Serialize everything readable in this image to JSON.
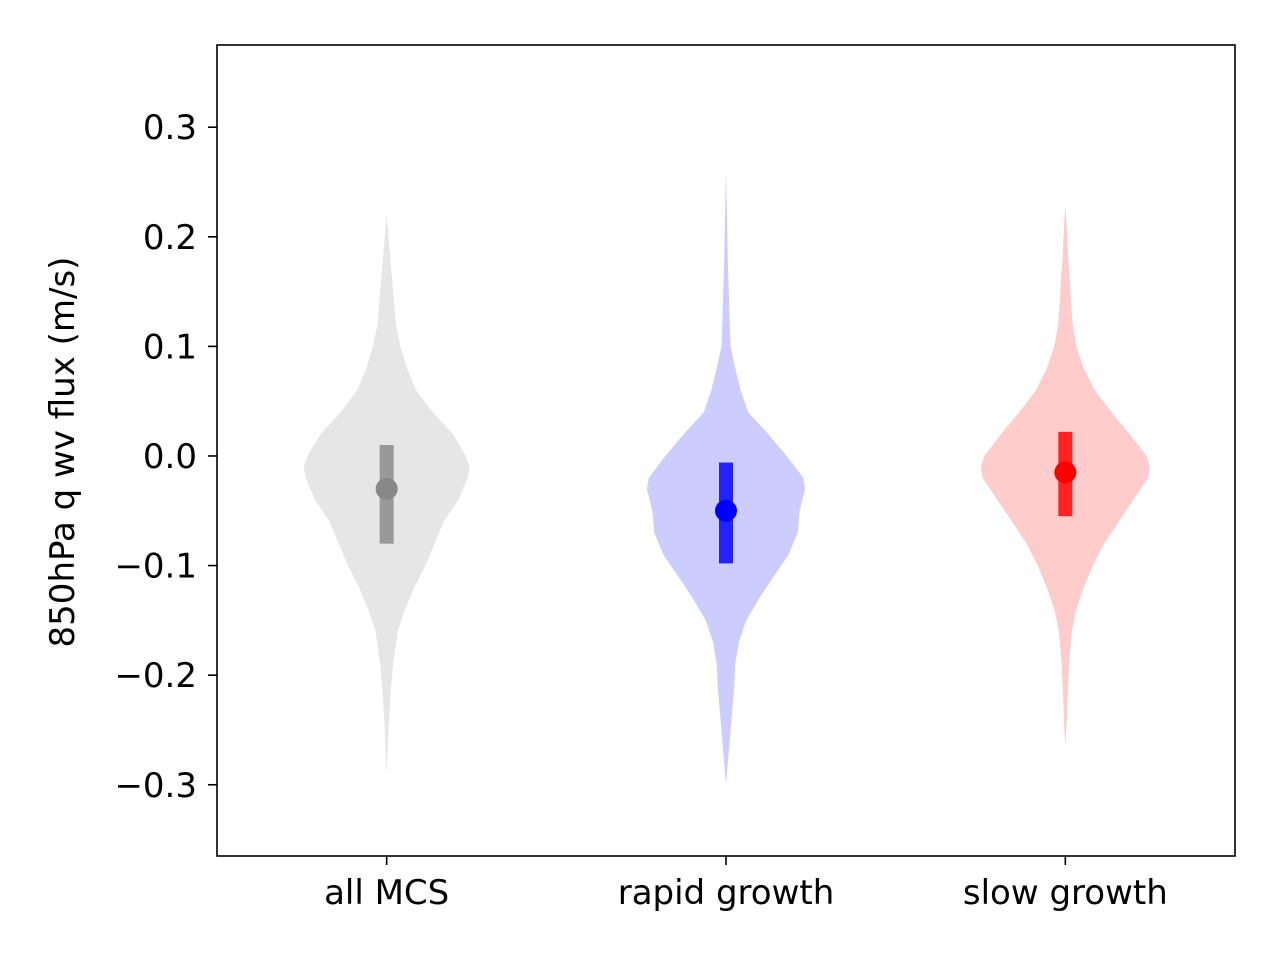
{
  "chart_data": {
    "type": "violin",
    "title": "",
    "xlabel": "",
    "ylabel": "850hPa q wv flux (m/s)",
    "ylim": [
      -0.365,
      0.375
    ],
    "yticks": [
      -0.3,
      -0.2,
      -0.1,
      0.0,
      0.1,
      0.2,
      0.3
    ],
    "ytick_labels": [
      "−0.3",
      "−0.2",
      "−0.1",
      "0.0",
      "0.1",
      "0.2",
      "0.3"
    ],
    "grid": false,
    "categories": [
      "all MCS",
      "rapid growth",
      "slow growth"
    ],
    "series": [
      {
        "category": "all MCS",
        "fill_color": "#e6e6e6",
        "marker_color": "#888888",
        "bar_color": "#999999",
        "median": -0.03,
        "q1": -0.08,
        "q3": 0.01,
        "min": -0.29,
        "max": 0.22,
        "profile": [
          [
            -0.29,
            0
          ],
          [
            -0.27,
            0.01
          ],
          [
            -0.25,
            0.02
          ],
          [
            -0.22,
            0.04
          ],
          [
            -0.19,
            0.07
          ],
          [
            -0.16,
            0.12
          ],
          [
            -0.14,
            0.2
          ],
          [
            -0.12,
            0.3
          ],
          [
            -0.1,
            0.42
          ],
          [
            -0.08,
            0.52
          ],
          [
            -0.06,
            0.62
          ],
          [
            -0.04,
            0.78
          ],
          [
            -0.02,
            0.88
          ],
          [
            -0.01,
            0.9
          ],
          [
            0.0,
            0.86
          ],
          [
            0.02,
            0.72
          ],
          [
            0.04,
            0.5
          ],
          [
            0.06,
            0.32
          ],
          [
            0.08,
            0.22
          ],
          [
            0.1,
            0.15
          ],
          [
            0.12,
            0.1
          ],
          [
            0.14,
            0.08
          ],
          [
            0.16,
            0.06
          ],
          [
            0.18,
            0.04
          ],
          [
            0.2,
            0.02
          ],
          [
            0.22,
            0
          ]
        ]
      },
      {
        "category": "rapid growth",
        "fill_color": "#ccccff",
        "marker_color": "#0000ff",
        "bar_color": "#2222ff",
        "median": -0.05,
        "q1": -0.098,
        "q3": -0.006,
        "min": -0.3,
        "max": 0.26,
        "profile": [
          [
            -0.3,
            0
          ],
          [
            -0.28,
            0.02
          ],
          [
            -0.26,
            0.04
          ],
          [
            -0.24,
            0.06
          ],
          [
            -0.21,
            0.09
          ],
          [
            -0.19,
            0.1
          ],
          [
            -0.17,
            0.14
          ],
          [
            -0.15,
            0.22
          ],
          [
            -0.13,
            0.36
          ],
          [
            -0.11,
            0.52
          ],
          [
            -0.09,
            0.68
          ],
          [
            -0.07,
            0.78
          ],
          [
            -0.05,
            0.8
          ],
          [
            -0.03,
            0.86
          ],
          [
            -0.02,
            0.84
          ],
          [
            0.0,
            0.66
          ],
          [
            0.02,
            0.46
          ],
          [
            0.04,
            0.24
          ],
          [
            0.06,
            0.16
          ],
          [
            0.08,
            0.1
          ],
          [
            0.1,
            0.05
          ],
          [
            0.12,
            0.04
          ],
          [
            0.15,
            0.03
          ],
          [
            0.18,
            0.02
          ],
          [
            0.22,
            0.01
          ],
          [
            0.26,
            0
          ]
        ]
      },
      {
        "category": "slow growth",
        "fill_color": "#ffcccc",
        "marker_color": "#ff0000",
        "bar_color": "#ff2222",
        "median": -0.015,
        "q1": -0.055,
        "q3": 0.022,
        "min": -0.265,
        "max": 0.23,
        "profile": [
          [
            -0.265,
            0
          ],
          [
            -0.25,
            0.01
          ],
          [
            -0.23,
            0.02
          ],
          [
            -0.21,
            0.03
          ],
          [
            -0.19,
            0.04
          ],
          [
            -0.16,
            0.07
          ],
          [
            -0.14,
            0.12
          ],
          [
            -0.12,
            0.2
          ],
          [
            -0.1,
            0.3
          ],
          [
            -0.08,
            0.42
          ],
          [
            -0.06,
            0.58
          ],
          [
            -0.04,
            0.74
          ],
          [
            -0.02,
            0.9
          ],
          [
            -0.01,
            0.92
          ],
          [
            0.0,
            0.88
          ],
          [
            0.02,
            0.7
          ],
          [
            0.04,
            0.5
          ],
          [
            0.06,
            0.32
          ],
          [
            0.08,
            0.2
          ],
          [
            0.1,
            0.12
          ],
          [
            0.12,
            0.08
          ],
          [
            0.14,
            0.06
          ],
          [
            0.16,
            0.05
          ],
          [
            0.18,
            0.03
          ],
          [
            0.2,
            0.02
          ],
          [
            0.23,
            0
          ]
        ]
      }
    ]
  }
}
